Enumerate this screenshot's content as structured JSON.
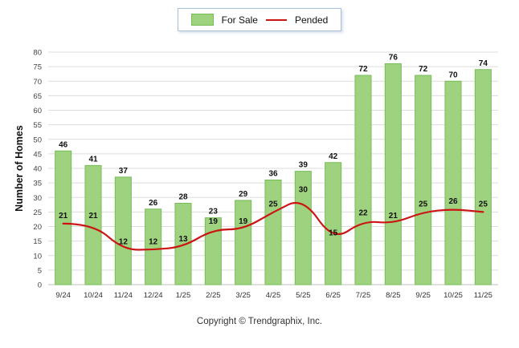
{
  "ylabel": "Number of Homes",
  "footer": "Copyright © Trendgraphix, Inc.",
  "chart_data": {
    "type": "bar",
    "title": "",
    "categories": [
      "9/24",
      "10/24",
      "11/24",
      "12/24",
      "1/25",
      "2/25",
      "3/25",
      "4/25",
      "5/25",
      "6/25",
      "7/25",
      "8/25",
      "9/25",
      "10/25",
      "11/25"
    ],
    "series": [
      {
        "name": "For Sale",
        "type": "bar",
        "values": [
          46,
          41,
          37,
          26,
          28,
          23,
          29,
          36,
          39,
          42,
          72,
          76,
          72,
          70,
          74
        ]
      },
      {
        "name": "Pended",
        "type": "line",
        "values": [
          21,
          21,
          12,
          12,
          13,
          19,
          19,
          25,
          30,
          15,
          22,
          21,
          25,
          26,
          25
        ]
      }
    ],
    "xlabel": "",
    "ylim": [
      0,
      80
    ],
    "ytick_step": 5,
    "grid": true,
    "legend_position": "top",
    "colors": {
      "bar_fill": "#9ED27F",
      "bar_stroke": "#76BD55",
      "line": "#CC1414",
      "grid": "#DCDCDC",
      "baseline": "#BFBFBF",
      "value_label": "#111111",
      "tick_label": "#444444",
      "legend_border": "#A6C1DD"
    }
  }
}
